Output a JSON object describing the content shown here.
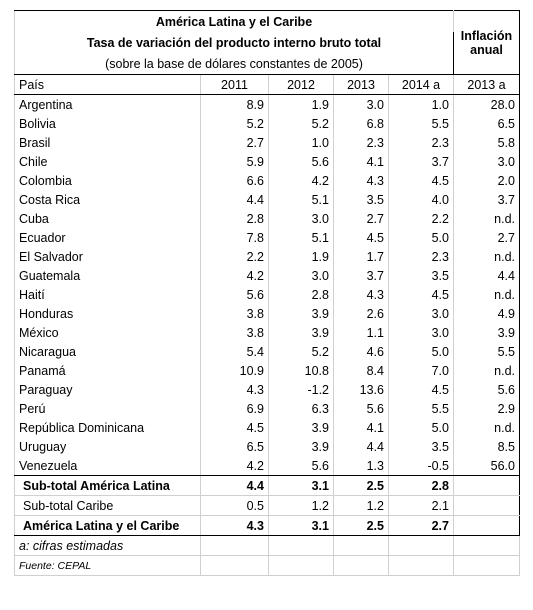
{
  "header": {
    "title": "América Latina y el Caribe",
    "subtitle": "Tasa de variación del producto interno bruto total",
    "note": "(sobre la base de dólares constantes de 2005)",
    "inflation_lines": [
      "Inflación",
      "anual"
    ]
  },
  "columns": [
    "País",
    "2011",
    "2012",
    "2013",
    "2014 a",
    "2013 a"
  ],
  "rows": [
    [
      "Argentina",
      "8.9",
      "1.9",
      "3.0",
      "1.0",
      "28.0"
    ],
    [
      "Bolivia",
      "5.2",
      "5.2",
      "6.8",
      "5.5",
      "6.5"
    ],
    [
      "Brasil",
      "2.7",
      "1.0",
      "2.3",
      "2.3",
      "5.8"
    ],
    [
      "Chile",
      "5.9",
      "5.6",
      "4.1",
      "3.7",
      "3.0"
    ],
    [
      "Colombia",
      "6.6",
      "4.2",
      "4.3",
      "4.5",
      "2.0"
    ],
    [
      "Costa Rica",
      "4.4",
      "5.1",
      "3.5",
      "4.0",
      "3.7"
    ],
    [
      "Cuba",
      "2.8",
      "3.0",
      "2.7",
      "2.2",
      "n.d."
    ],
    [
      "Ecuador",
      "7.8",
      "5.1",
      "4.5",
      "5.0",
      "2.7"
    ],
    [
      "El Salvador",
      "2.2",
      "1.9",
      "1.7",
      "2.3",
      "n.d."
    ],
    [
      "Guatemala",
      "4.2",
      "3.0",
      "3.7",
      "3.5",
      "4.4"
    ],
    [
      "Haití",
      "5.6",
      "2.8",
      "4.3",
      "4.5",
      "n.d."
    ],
    [
      "Honduras",
      "3.8",
      "3.9",
      "2.6",
      "3.0",
      "4.9"
    ],
    [
      "México",
      "3.8",
      "3.9",
      "1.1",
      "3.0",
      "3.9"
    ],
    [
      "Nicaragua",
      "5.4",
      "5.2",
      "4.6",
      "5.0",
      "5.5"
    ],
    [
      "Panamá",
      "10.9",
      "10.8",
      "8.4",
      "7.0",
      "n.d."
    ],
    [
      "Paraguay",
      "4.3",
      "-1.2",
      "13.6",
      "4.5",
      "5.6"
    ],
    [
      "Perú",
      "6.9",
      "6.3",
      "5.6",
      "5.5",
      "2.9"
    ],
    [
      "República Dominicana",
      "4.5",
      "3.9",
      "4.1",
      "5.0",
      "n.d."
    ],
    [
      "Uruguay",
      "6.5",
      "3.9",
      "4.4",
      "3.5",
      "8.5"
    ],
    [
      "Venezuela",
      "4.2",
      "5.6",
      "1.3",
      "-0.5",
      "56.0"
    ]
  ],
  "totals": [
    [
      "Sub-total América Latina",
      "4.4",
      "3.1",
      "2.5",
      "2.8"
    ],
    [
      "Sub-total Caribe",
      "0.5",
      "1.2",
      "1.2",
      "2.1"
    ],
    [
      "América Latina y el Caribe",
      "4.3",
      "3.1",
      "2.5",
      "2.7"
    ]
  ],
  "footnotes": [
    "a: cifras estimadas",
    "Fuente: CEPAL"
  ]
}
